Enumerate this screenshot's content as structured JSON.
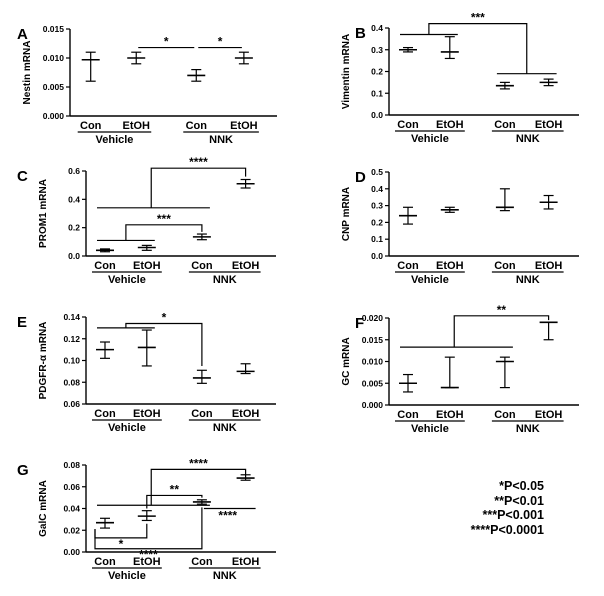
{
  "chart_data": [
    {
      "id": "A",
      "type": "scatter",
      "panel_label": "A",
      "ylabel": "Nestin mRNA",
      "ylim": [
        0,
        0.015
      ],
      "yticks": [
        "0.000",
        "0.005",
        "0.010",
        "0.015"
      ],
      "categories": [
        "Con",
        "EtOH",
        "Con",
        "EtOH"
      ],
      "groups": [
        "Vehicle",
        "NNK"
      ],
      "mean": [
        0.0097,
        0.01,
        0.007,
        0.01
      ],
      "err_low": [
        0.006,
        0.009,
        0.006,
        0.009
      ],
      "err_high": [
        0.011,
        0.011,
        0.008,
        0.011
      ],
      "sig": [
        {
          "label": "*",
          "type": "bridge",
          "a": [
            1
          ],
          "b": [
            2
          ],
          "y": 0.0118
        },
        {
          "label": "*",
          "type": "bridge",
          "a": [
            2
          ],
          "b": [
            3
          ],
          "y": 0.0118
        }
      ]
    },
    {
      "id": "B",
      "type": "scatter",
      "panel_label": "B",
      "ylabel": "Vimentin mRNA",
      "ylim": [
        0,
        0.4
      ],
      "yticks": [
        "0.0",
        "0.1",
        "0.2",
        "0.3",
        "0.4"
      ],
      "categories": [
        "Con",
        "EtOH",
        "Con",
        "EtOH"
      ],
      "groups": [
        "Vehicle",
        "NNK"
      ],
      "mean": [
        0.3,
        0.29,
        0.135,
        0.15
      ],
      "err_low": [
        0.29,
        0.26,
        0.12,
        0.135
      ],
      "err_high": [
        0.31,
        0.36,
        0.15,
        0.165
      ],
      "sig": [
        {
          "label": "***",
          "type": "group",
          "a": [
            0,
            1
          ],
          "b": [
            2,
            3
          ],
          "y": 0.42,
          "ya": 0.37,
          "yb": 0.19
        }
      ]
    },
    {
      "id": "C",
      "type": "scatter",
      "panel_label": "C",
      "ylabel": "PROM1 mRNA",
      "ylim": [
        0,
        0.6
      ],
      "yticks": [
        "0.0",
        "0.2",
        "0.4",
        "0.6"
      ],
      "categories": [
        "Con",
        "EtOH",
        "Con",
        "EtOH"
      ],
      "groups": [
        "Vehicle",
        "NNK"
      ],
      "mean": [
        0.04,
        0.06,
        0.135,
        0.51
      ],
      "err_low": [
        0.03,
        0.04,
        0.115,
        0.48
      ],
      "err_high": [
        0.05,
        0.075,
        0.155,
        0.54
      ],
      "sig": [
        {
          "label": "***",
          "type": "group",
          "a": [
            0,
            1
          ],
          "b": [
            2
          ],
          "y": 0.22,
          "ya": 0.11,
          "yb": 0.17
        },
        {
          "label": "****",
          "type": "group",
          "a": [
            0,
            1,
            2
          ],
          "b": [
            3
          ],
          "y": 0.62,
          "ya": 0.34,
          "yb": 0.56
        }
      ]
    },
    {
      "id": "D",
      "type": "scatter",
      "panel_label": "D",
      "ylabel": "CNP mRNA",
      "ylim": [
        0,
        0.5
      ],
      "yticks": [
        "0.0",
        "0.1",
        "0.2",
        "0.3",
        "0.4",
        "0.5"
      ],
      "categories": [
        "Con",
        "EtOH",
        "Con",
        "EtOH"
      ],
      "groups": [
        "Vehicle",
        "NNK"
      ],
      "mean": [
        0.24,
        0.275,
        0.29,
        0.32
      ],
      "err_low": [
        0.19,
        0.26,
        0.27,
        0.28
      ],
      "err_high": [
        0.29,
        0.29,
        0.4,
        0.36
      ],
      "sig": []
    },
    {
      "id": "E",
      "type": "scatter",
      "panel_label": "E",
      "ylabel": "PDGFR-α mRNA",
      "ylim": [
        0.06,
        0.14
      ],
      "yticks": [
        "0.06",
        "0.08",
        "0.10",
        "0.12",
        "0.14"
      ],
      "categories": [
        "Con",
        "EtOH",
        "Con",
        "EtOH"
      ],
      "groups": [
        "Vehicle",
        "NNK"
      ],
      "mean": [
        0.11,
        0.112,
        0.084,
        0.09
      ],
      "err_low": [
        0.102,
        0.095,
        0.079,
        0.088
      ],
      "err_high": [
        0.117,
        0.128,
        0.091,
        0.097
      ],
      "sig": [
        {
          "label": "*",
          "type": "group",
          "a": [
            0,
            1
          ],
          "b": [
            2
          ],
          "y": 0.134,
          "ya": 0.13,
          "yb": 0.095
        }
      ]
    },
    {
      "id": "F",
      "type": "scatter",
      "panel_label": "F",
      "ylabel": "GC mRNA",
      "ylim": [
        0,
        0.02
      ],
      "yticks": [
        "0.000",
        "0.005",
        "0.010",
        "0.015",
        "0.020"
      ],
      "categories": [
        "Con",
        "EtOH",
        "Con",
        "EtOH"
      ],
      "groups": [
        "Vehicle",
        "NNK"
      ],
      "mean": [
        0.005,
        0.004,
        0.01,
        0.019
      ],
      "err_low": [
        0.003,
        0.004,
        0.004,
        0.015
      ],
      "err_high": [
        0.007,
        0.011,
        0.011,
        0.019
      ],
      "sig": [
        {
          "label": "**",
          "type": "group",
          "a": [
            0,
            1,
            2
          ],
          "b": [
            3
          ],
          "y": 0.0205,
          "ya": 0.0133,
          "yb": 0.0195
        }
      ]
    },
    {
      "id": "G",
      "type": "scatter",
      "panel_label": "G",
      "ylabel": "GalC mRNA",
      "ylim": [
        0,
        0.08
      ],
      "yticks": [
        "0.00",
        "0.02",
        "0.04",
        "0.06",
        "0.08"
      ],
      "categories": [
        "Con",
        "EtOH",
        "Con",
        "EtOH"
      ],
      "groups": [
        "Vehicle",
        "NNK"
      ],
      "mean": [
        0.027,
        0.033,
        0.046,
        0.068
      ],
      "err_low": [
        0.022,
        0.029,
        0.044,
        0.066
      ],
      "err_high": [
        0.031,
        0.038,
        0.048,
        0.071
      ],
      "sig": [
        {
          "label": "****",
          "type": "group",
          "a": [
            0,
            1,
            2
          ],
          "b": [
            3
          ],
          "y": 0.076,
          "ya": 0.043,
          "yb": 0.071
        },
        {
          "label": "**",
          "type": "group",
          "a": [
            1
          ],
          "b": [
            2
          ],
          "y": 0.052,
          "ya": 0.04,
          "yb": 0.05
        },
        {
          "label": "****",
          "type": "lowbridge",
          "a": [
            2
          ],
          "b": [
            3
          ],
          "y": 0.04
        },
        {
          "label": "*",
          "type": "below",
          "a": [
            0
          ],
          "b": [
            1
          ],
          "y": 0.013,
          "ya": 0.021,
          "yb": 0.026
        },
        {
          "label": "****",
          "type": "below",
          "a": [
            0
          ],
          "b": [
            2
          ],
          "y": 0.003,
          "ya": 0.021,
          "yb": 0.041
        }
      ]
    }
  ],
  "legend": [
    "*P<0.05",
    "**P<0.01",
    "***P<0.001",
    "****P<0.0001"
  ]
}
